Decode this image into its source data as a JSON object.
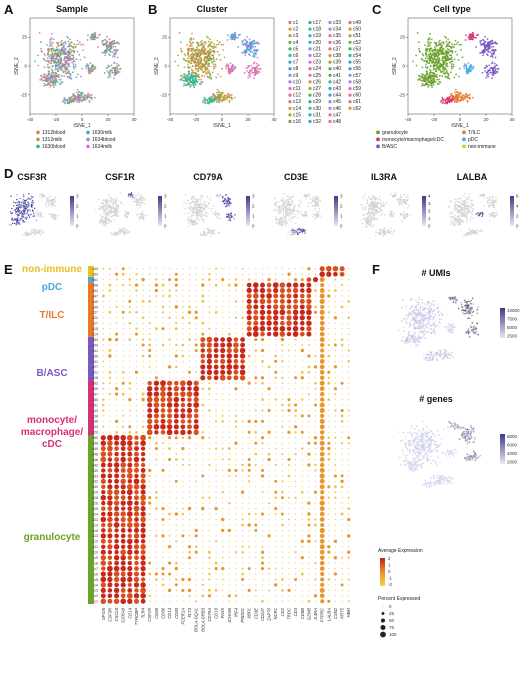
{
  "panels": {
    "A": {
      "label": "A",
      "title": "Sample",
      "xlabel": "tSNE_1",
      "ylabel": "tSNE_2",
      "xticks": [
        "-40",
        "-20",
        "0",
        "20",
        "40"
      ],
      "yticks": [
        "25",
        "0",
        "-25"
      ],
      "legend": [
        "1312blood",
        "1312milk",
        "1630blood",
        "1630milk",
        "1634blood",
        "1634milk"
      ],
      "legend_colors": [
        "#e8736b",
        "#a7a534",
        "#36b47a",
        "#35aebd",
        "#8b8fe0",
        "#e06ad0"
      ]
    },
    "B": {
      "label": "B",
      "title": "Cluster",
      "xlabel": "tSNE_1",
      "ylabel": "tSNE_2",
      "xticks": [
        "-40",
        "-20",
        "0",
        "20",
        "40"
      ],
      "yticks": [
        "25",
        "0",
        "-25"
      ]
    },
    "C": {
      "label": "C",
      "title": "Cell type",
      "xlabel": "tSNE_1",
      "ylabel": "tSNE_2",
      "xticks": [
        "-40",
        "-20",
        "0",
        "20",
        "40"
      ],
      "yticks": [
        "25",
        "0",
        "-25"
      ],
      "legend": [
        "granulocyte",
        "monocyte/macrophage/cDC",
        "B/ASC",
        "T/ILC",
        "pDC",
        "non-immune"
      ],
      "legend_colors": [
        "#6ca12c",
        "#d6307a",
        "#7a58c2",
        "#e87a2a",
        "#4aa8e0",
        "#e8c020"
      ]
    },
    "D": {
      "label": "D",
      "genes": [
        "CSF3R",
        "CSF1R",
        "CD79A",
        "CD3E",
        "IL3RA",
        "LALBA"
      ],
      "scales": [
        [
          "0",
          "1",
          "2",
          "3"
        ],
        [
          "0",
          "1",
          "2",
          "3"
        ],
        [
          "0",
          "1",
          "2",
          "3"
        ],
        [
          "0",
          "1",
          "2",
          "3"
        ],
        [
          "0",
          "1",
          "2",
          "3",
          "4"
        ],
        [
          "0",
          "2",
          "4",
          "6"
        ]
      ]
    },
    "E": {
      "label": "E"
    },
    "F": {
      "label": "F",
      "umi_title": "# UMIs",
      "umi_scale": [
        "10000",
        "7500",
        "5000",
        "2500"
      ],
      "gene_title": "# genes",
      "gene_scale": [
        "8000",
        "6000",
        "4000",
        "2000"
      ]
    }
  },
  "cluster_legend": [
    "c1",
    "c2",
    "c3",
    "c4",
    "c5",
    "c6",
    "c7",
    "c8",
    "c9",
    "c10",
    "c11",
    "c12",
    "c13",
    "c14",
    "c15",
    "c16",
    "c17",
    "c18",
    "c19",
    "c20",
    "c21",
    "c22",
    "c23",
    "c24",
    "c25",
    "c26",
    "c27",
    "c28",
    "c29",
    "c30",
    "c31",
    "c32",
    "c33",
    "c34",
    "c35",
    "c36",
    "c37",
    "c38",
    "c39",
    "c40",
    "c41",
    "c42",
    "c43",
    "c44",
    "c45",
    "c46",
    "c47",
    "c48",
    "c49",
    "c50",
    "c51",
    "c52",
    "c53",
    "c54",
    "c55",
    "c56",
    "c57",
    "c58",
    "c59",
    "c60",
    "c61",
    "c62"
  ],
  "dotplot": {
    "groups": [
      {
        "name": "non-immune",
        "color": "#e8c020",
        "rows": [
          "c44",
          "c53"
        ]
      },
      {
        "name": "pDC",
        "color": "#4aa8e0",
        "rows": [
          "c61"
        ]
      },
      {
        "name": "T/ILC",
        "color": "#e87a2a",
        "rows": [
          "c56",
          "c52",
          "c47",
          "c45",
          "c40",
          "c37",
          "c22",
          "c17",
          "c15",
          "c14"
        ]
      },
      {
        "name": "B/ASC",
        "color": "#7a58c2",
        "rows": [
          "c54",
          "c50",
          "c41",
          "c35",
          "c31",
          "c27",
          "c21",
          "c18"
        ]
      },
      {
        "name": "monocyte/ macrophage/ cDC",
        "color": "#d6307a",
        "rows": [
          "c62",
          "c59",
          "c57",
          "c55",
          "c51",
          "c43",
          "c38",
          "c36",
          "c34",
          "c20"
        ]
      },
      {
        "name": "granulocyte",
        "color": "#6ca12c",
        "rows": [
          "c60",
          "c58",
          "c49",
          "c48",
          "c46",
          "c42",
          "c39",
          "c33",
          "c32",
          "c30",
          "c29",
          "c28",
          "c26",
          "c25",
          "c24",
          "c23",
          "c19",
          "c16",
          "c13",
          "c12",
          "c11",
          "c10",
          "c9",
          "c8",
          "c7",
          "c6",
          "c5",
          "c4",
          "c3",
          "c2",
          "c1"
        ]
      }
    ],
    "genes": [
      "SPI1N",
      "CSF3R",
      "CXCL8",
      "S100A8",
      "CD14",
      "TYROBP",
      "TLR4",
      "CSF1R",
      "CD68",
      "CD86",
      "CD14",
      "CD83",
      "FCER1A",
      "FLT3",
      "BOLA-DQA1",
      "BOLA-DRB3",
      "CD79A",
      "CD19",
      "PAX5",
      "JCHAIN",
      "IRF4",
      "PRDM1",
      "XBP1",
      "CD3E",
      "CD247",
      "ZAP70",
      "NCR1",
      "CD2",
      "TRDC",
      "CD4",
      "CD8B",
      "GZMB",
      "IL3RA",
      "PTPRC",
      "LALBA",
      "CSN2",
      "KRT5",
      "HBM"
    ],
    "legend_title": "Average Expression",
    "expr_ticks": [
      "2",
      "1",
      "0",
      "-1",
      "-2"
    ],
    "pct_title": "Percent Expressed",
    "pct_ticks": [
      "0",
      "25",
      "50",
      "75",
      "100"
    ]
  }
}
